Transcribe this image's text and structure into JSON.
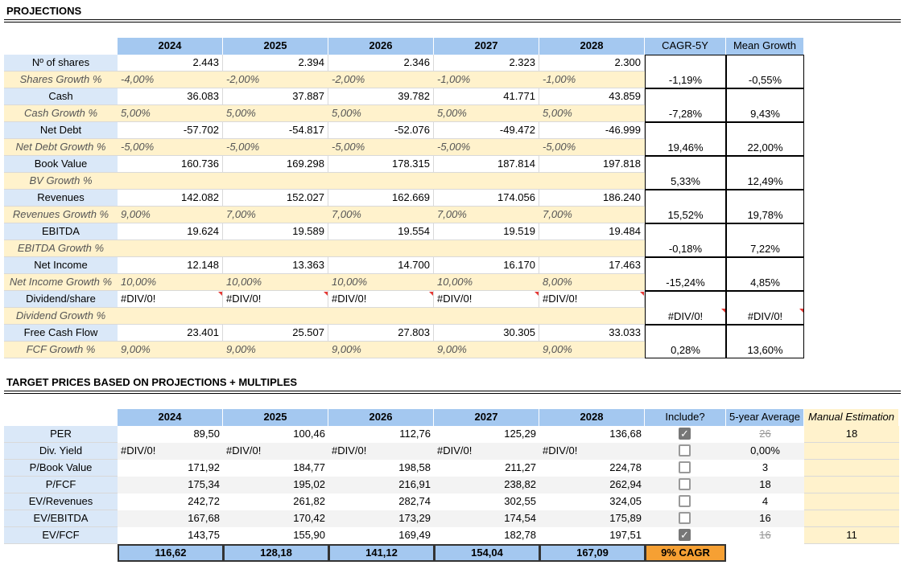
{
  "projections": {
    "title": "PROJECTIONS",
    "columns": [
      "2024",
      "2025",
      "2026",
      "2027",
      "2028",
      "CAGR-5Y",
      "Mean Growth"
    ],
    "metrics": [
      {
        "name": "Nº of shares",
        "values": [
          "2.443",
          "2.394",
          "2.346",
          "2.323",
          "2.300"
        ],
        "growth_name": "Shares Growth %",
        "growth": [
          "-4,00%",
          "-2,00%",
          "-2,00%",
          "-1,00%",
          "-1,00%"
        ],
        "cagr": "-1,19%",
        "mean": "-0,55%"
      },
      {
        "name": "Cash",
        "values": [
          "36.083",
          "37.887",
          "39.782",
          "41.771",
          "43.859"
        ],
        "growth_name": "Cash Growth %",
        "growth": [
          "5,00%",
          "5,00%",
          "5,00%",
          "5,00%",
          "5,00%"
        ],
        "cagr": "-7,28%",
        "mean": "9,43%"
      },
      {
        "name": "Net Debt",
        "values": [
          "-57.702",
          "-54.817",
          "-52.076",
          "-49.472",
          "-46.999"
        ],
        "growth_name": "Net Debt Growth %",
        "growth": [
          "-5,00%",
          "-5,00%",
          "-5,00%",
          "-5,00%",
          "-5,00%"
        ],
        "cagr": "19,46%",
        "mean": "22,00%"
      },
      {
        "name": "Book Value",
        "values": [
          "160.736",
          "169.298",
          "178.315",
          "187.814",
          "197.818"
        ],
        "growth_name": "BV Growth %",
        "cagr": "5,33%",
        "mean": "12,49%"
      },
      {
        "name": "Revenues",
        "values": [
          "142.082",
          "152.027",
          "162.669",
          "174.056",
          "186.240"
        ],
        "growth_name": "Revenues Growth %",
        "growth": [
          "9,00%",
          "7,00%",
          "7,00%",
          "7,00%",
          "7,00%"
        ],
        "cagr": "15,52%",
        "mean": "19,78%"
      },
      {
        "name": "EBITDA",
        "values": [
          "19.624",
          "19.589",
          "19.554",
          "19.519",
          "19.484"
        ],
        "growth_name": "EBITDA Growth %",
        "cagr": "-0,18%",
        "mean": "7,22%"
      },
      {
        "name": "Net Income",
        "values": [
          "12.148",
          "13.363",
          "14.700",
          "16.170",
          "17.463"
        ],
        "growth_name": "Net Income Growth %",
        "growth": [
          "10,00%",
          "10,00%",
          "10,00%",
          "10,00%",
          "8,00%"
        ],
        "cagr": "-15,24%",
        "mean": "4,85%"
      },
      {
        "name": "Dividend/share",
        "values": [
          "#DIV/0!",
          "#DIV/0!",
          "#DIV/0!",
          "#DIV/0!",
          "#DIV/0!"
        ],
        "growth_name": "Dividend Growth %",
        "cagr": "#DIV/0!",
        "mean": "#DIV/0!"
      },
      {
        "name": "Free Cash Flow",
        "values": [
          "23.401",
          "25.507",
          "27.803",
          "30.305",
          "33.033"
        ],
        "growth_name": "FCF Growth %",
        "growth": [
          "9,00%",
          "9,00%",
          "9,00%",
          "9,00%",
          "9,00%"
        ],
        "cagr": "0,28%",
        "mean": "13,60%"
      }
    ]
  },
  "targets": {
    "title": "TARGET PRICES BASED ON PROJECTIONS + MULTIPLES",
    "columns": [
      "2024",
      "2025",
      "2026",
      "2027",
      "2028",
      "Include?",
      "5-year Average",
      "Manual Estimation"
    ],
    "rows": [
      {
        "name": "PER",
        "values": [
          "89,50",
          "100,46",
          "112,76",
          "125,29",
          "136,68"
        ],
        "included": true,
        "average": "26",
        "manual": "18"
      },
      {
        "name": "Div. Yield",
        "values": [
          "#DIV/0!",
          "#DIV/0!",
          "#DIV/0!",
          "#DIV/0!",
          "#DIV/0!"
        ],
        "included": false,
        "average": "0,00%"
      },
      {
        "name": "P/Book Value",
        "values": [
          "171,92",
          "184,77",
          "198,58",
          "211,27",
          "224,78"
        ],
        "included": false,
        "average": "3"
      },
      {
        "name": "P/FCF",
        "values": [
          "175,34",
          "195,02",
          "216,91",
          "238,82",
          "262,94"
        ],
        "included": false,
        "average": "18"
      },
      {
        "name": "EV/Revenues",
        "values": [
          "242,72",
          "261,82",
          "282,74",
          "302,55",
          "324,05"
        ],
        "included": false,
        "average": "4"
      },
      {
        "name": "EV/EBITDA",
        "values": [
          "167,68",
          "170,42",
          "173,29",
          "174,54",
          "175,89"
        ],
        "included": false,
        "average": "16"
      },
      {
        "name": "EV/FCF",
        "values": [
          "143,75",
          "155,90",
          "169,49",
          "182,78",
          "197,51"
        ],
        "included": true,
        "average": "16",
        "manual": "11"
      }
    ],
    "totals": [
      "116,62",
      "128,18",
      "141,12",
      "154,04",
      "167,09"
    ],
    "cagr_label": "9% CAGR"
  }
}
